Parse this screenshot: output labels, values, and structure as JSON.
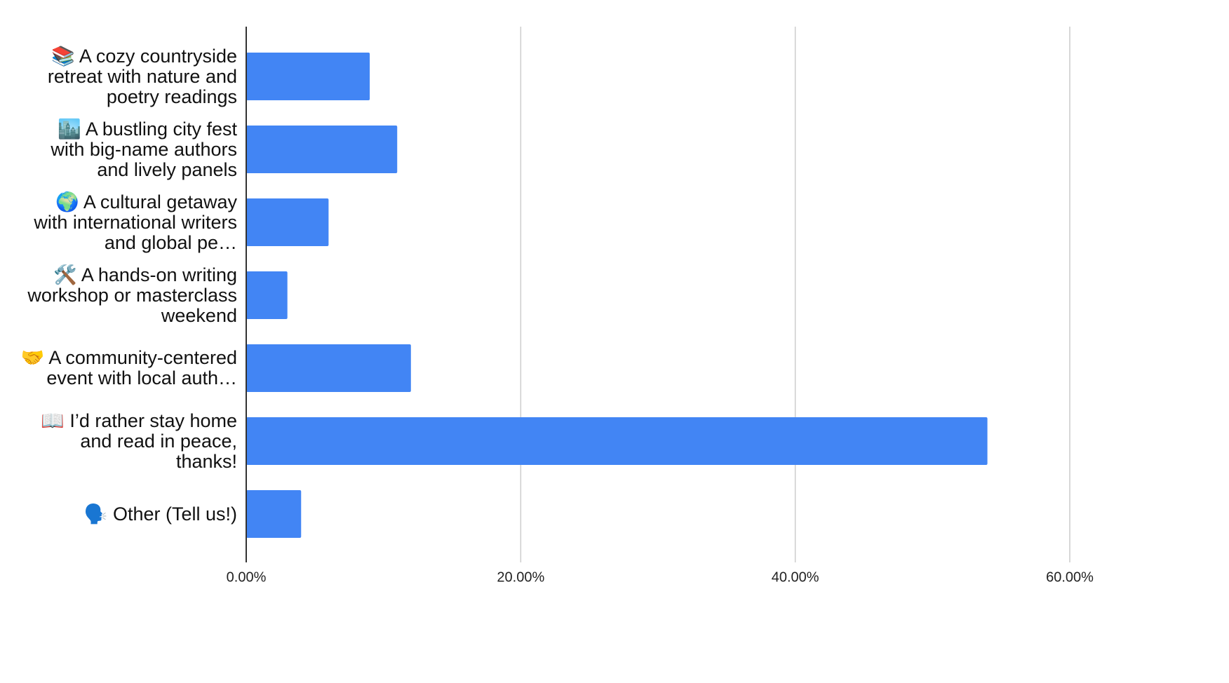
{
  "chart_data": {
    "type": "bar",
    "orientation": "horizontal",
    "categories": [
      "📚 A cozy countryside retreat with nature and poetry readings",
      "🏙️ A bustling city fest with big-name authors and lively panels",
      "🌍 A cultural getaway with international writers and global pe…",
      "🛠️ A hands-on writing workshop or masterclass weekend",
      "🤝 A community-centered event with local auth…",
      "📖 I’d rather stay home and read in peace, thanks!",
      "🗣️ Other (Tell us!)"
    ],
    "values": [
      9,
      11,
      6,
      3,
      12,
      54,
      4
    ],
    "color": "#4285f4",
    "xlim": [
      0,
      60
    ],
    "xticks": [
      {
        "value": 0,
        "label": "0.00%"
      },
      {
        "value": 20,
        "label": "20.00%"
      },
      {
        "value": 40,
        "label": "40.00%"
      },
      {
        "value": 60,
        "label": "60.00%"
      }
    ],
    "grid": true
  }
}
